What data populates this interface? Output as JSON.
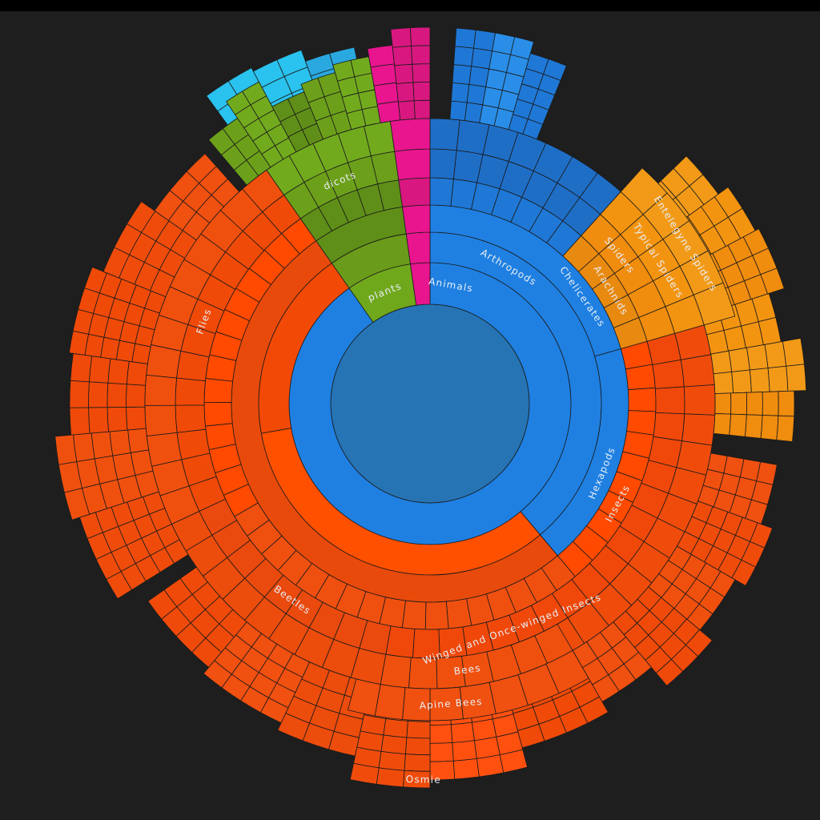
{
  "chart_data": {
    "type": "sunburst",
    "title": "",
    "start_angle_deg": 0,
    "palette": {
      "center": "#2674b4",
      "animals": "#1f80e2",
      "plants": "#70a81c",
      "plants_dark": "#5f8f18",
      "pink": "#e8158e",
      "spiders": "#f08c0e",
      "insects": "#f0480a",
      "orange_spike": "#ff6a00",
      "cyan": "#2ac2ee",
      "blue_deep": "#1f6ec6"
    },
    "rings": [
      {
        "level": 0,
        "segments": [
          {
            "start": 0,
            "end": 360,
            "color": "#2674b4"
          }
        ]
      },
      {
        "level": 1,
        "segments": [
          {
            "start": 0,
            "end": 325,
            "color": "#1f80e2",
            "label": "Animals"
          },
          {
            "start": 325,
            "end": 352,
            "color": "#70a81c",
            "label": "plants"
          },
          {
            "start": 352,
            "end": 360,
            "color": "#e8158e"
          }
        ]
      },
      {
        "level": 2,
        "segments": [
          {
            "start": 0,
            "end": 140,
            "color": "#1f80e2",
            "label": "Arthropods"
          },
          {
            "start": 140,
            "end": 260,
            "color": "#ff5000"
          },
          {
            "start": 260,
            "end": 325,
            "color": "#f24a06"
          },
          {
            "start": 325,
            "end": 352,
            "color": "#6a9b1a"
          },
          {
            "start": 352,
            "end": 360,
            "color": "#e8158e"
          }
        ]
      },
      {
        "level": 3,
        "segments": [
          {
            "start": 0,
            "end": 74,
            "color": "#1f80e2",
            "label": "Chelicerates"
          },
          {
            "start": 74,
            "end": 140,
            "color": "#1f80e2",
            "label": "Hexapods"
          },
          {
            "start": 140,
            "end": 325,
            "color": "#e84a0c"
          },
          {
            "start": 325,
            "end": 352,
            "color": "#5f8f18"
          },
          {
            "start": 352,
            "end": 360,
            "color": "#e8158e"
          }
        ]
      },
      {
        "level": 4,
        "segments": [
          {
            "start": 0,
            "end": 42,
            "color": "#1f78d6"
          },
          {
            "start": 42,
            "end": 74,
            "color": "#e98a10",
            "label": "Arachnids"
          },
          {
            "start": 74,
            "end": 140,
            "color": "#ff4a00",
            "label": "Insects"
          },
          {
            "start": 140,
            "end": 240,
            "color": "#ef5010"
          },
          {
            "start": 240,
            "end": 325,
            "color": "#ff4a00"
          },
          {
            "start": 325,
            "end": 352,
            "color": "#5f8f18"
          },
          {
            "start": 352,
            "end": 360,
            "color": "#d81880"
          }
        ]
      },
      {
        "level": 5,
        "segments": [
          {
            "start": 0,
            "end": 42,
            "color": "#1f6ec6"
          },
          {
            "start": 42,
            "end": 74,
            "color": "#f08c0e",
            "label": "Spiders"
          },
          {
            "start": 74,
            "end": 190,
            "color": "#f0480a",
            "label": "Winged and Once-winged Insects"
          },
          {
            "start": 190,
            "end": 245,
            "color": "#ea4a0e",
            "label": "Beetles"
          },
          {
            "start": 245,
            "end": 325,
            "color": "#f04a08",
            "label": "Flies"
          },
          {
            "start": 325,
            "end": 352,
            "color": "#6ca01a",
            "label": "dicots"
          },
          {
            "start": 352,
            "end": 360,
            "color": "#e8158e"
          }
        ]
      },
      {
        "level": 6,
        "segments": [
          {
            "start": 0,
            "end": 42,
            "color": "#1f6ec6"
          },
          {
            "start": 42,
            "end": 74,
            "color": "#f39410",
            "label": "Typical Spiders"
          },
          {
            "start": 74,
            "end": 190,
            "color": "#ef4c0c"
          },
          {
            "start": 150,
            "end": 190,
            "color": "#f0500e",
            "label": "Bees"
          },
          {
            "start": 190,
            "end": 245,
            "color": "#ec4c0c"
          },
          {
            "start": 245,
            "end": 325,
            "color": "#f0500e"
          },
          {
            "start": 325,
            "end": 352,
            "color": "#72aa1e"
          },
          {
            "start": 352,
            "end": 360,
            "color": "#e8158e"
          }
        ]
      },
      {
        "level": 7,
        "segments": [
          {
            "start": 42,
            "end": 74,
            "color": "#f29a18",
            "label": "Entelegyne Spiders"
          },
          {
            "start": 150,
            "end": 180,
            "color": "#f05010",
            "label": "Apine Bees"
          },
          {
            "start": 180,
            "end": 195,
            "color": "#f05010",
            "label": "Osmie"
          }
        ]
      }
    ],
    "labels": [
      {
        "text": "Animals"
      },
      {
        "text": "plants"
      },
      {
        "text": "Arthropods"
      },
      {
        "text": "Chelicerates"
      },
      {
        "text": "Hexapods"
      },
      {
        "text": "Arachnids"
      },
      {
        "text": "Insects"
      },
      {
        "text": "Spiders"
      },
      {
        "text": "Winged and Once-winged Insects"
      },
      {
        "text": "Beetles"
      },
      {
        "text": "Flies"
      },
      {
        "text": "dicots"
      },
      {
        "text": "Typical Spiders"
      },
      {
        "text": "Bees"
      },
      {
        "text": "Entelegyne Spiders"
      },
      {
        "text": "Apine Bees"
      },
      {
        "text": "Osmie"
      }
    ]
  }
}
